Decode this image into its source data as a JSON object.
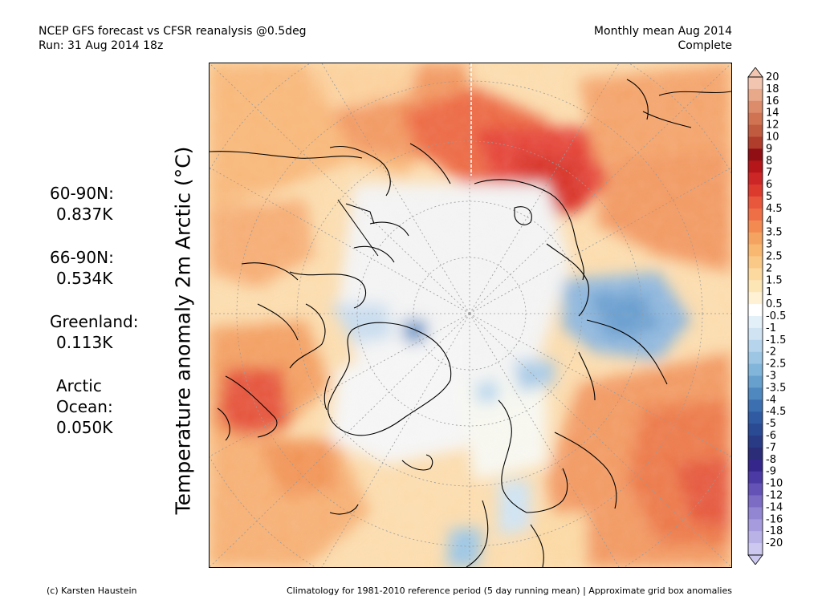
{
  "header": {
    "title": "NCEP GFS forecast vs CFSR reanalysis @0.5deg",
    "run": "Run: 31 Aug 2014 18z",
    "period": "Monthly mean Aug 2014",
    "status": "Complete"
  },
  "axis_label": "Temperature anomaly 2m Arctic (°C)",
  "stats": [
    {
      "label": "60-90N:",
      "value": "0.837K"
    },
    {
      "label": "66-90N:",
      "value": "0.534K"
    },
    {
      "label": "Greenland:",
      "value": "0.113K"
    },
    {
      "label": "Arctic",
      "label2": "Ocean:",
      "value": "0.050K"
    }
  ],
  "colorbar": {
    "labels": [
      "20",
      "18",
      "16",
      "14",
      "12",
      "10",
      "9",
      "8",
      "7",
      "6",
      "5",
      "4.5",
      "4",
      "3.5",
      "3",
      "2.5",
      "2",
      "1.5",
      "1",
      "0.5",
      "-0.5",
      "-1",
      "-1.5",
      "-2",
      "-2.5",
      "-3",
      "-3.5",
      "-4",
      "-4.5",
      "-5",
      "-6",
      "-7",
      "-8",
      "-9",
      "-10",
      "-12",
      "-14",
      "-16",
      "-18",
      "-20"
    ],
    "colors": [
      "#f2c5b0",
      "#e8a88a",
      "#dd8c6b",
      "#cf7353",
      "#c05b40",
      "#b03c2c",
      "#900f14",
      "#b4161a",
      "#cd2626",
      "#dd3a2e",
      "#e8563b",
      "#ee6e45",
      "#f28a52",
      "#f5a360",
      "#f8b872",
      "#fac988",
      "#fbd99f",
      "#fde6b6",
      "#fef1d4",
      "#ffffff",
      "#e4f0f8",
      "#cfe3f2",
      "#b6d5ec",
      "#9cc6e4",
      "#82b5da",
      "#679fcd",
      "#4f87bf",
      "#3c6fb0",
      "#305ba2",
      "#2a4a93",
      "#2a3b85",
      "#2b2d78",
      "#34268a",
      "#4b3aa3",
      "#6552b6",
      "#7c6cc4",
      "#9285d2",
      "#a69bdc",
      "#b9b2e6",
      "#ccc8ef"
    ]
  },
  "footer": {
    "credit": "(c) Karsten Haustein",
    "note": "Climatology for 1981-2010 reference period (5 day running mean) | Approximate grid box anomalies"
  }
}
